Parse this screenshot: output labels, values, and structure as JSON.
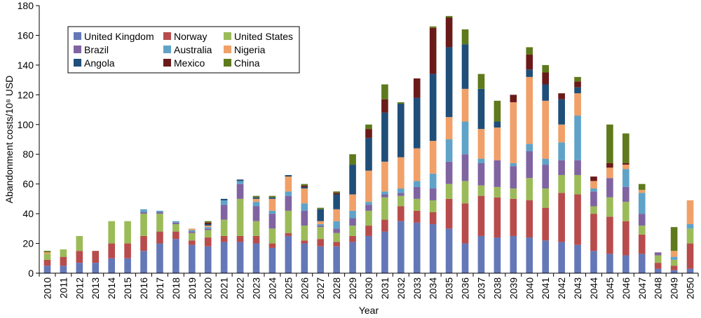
{
  "chart_data": {
    "type": "bar",
    "stacked": true,
    "title": "",
    "xlabel": "Year",
    "ylabel": "Abandonment costs/10⁸ USD",
    "ylim": [
      0,
      180
    ],
    "yticks": [
      0,
      20,
      40,
      60,
      80,
      100,
      120,
      140,
      160,
      180
    ],
    "grid": false,
    "legend_position": "top-left",
    "categories": [
      "2010",
      "2011",
      "2012",
      "2013",
      "2014",
      "2015",
      "2016",
      "2017",
      "2018",
      "2019",
      "2020",
      "2021",
      "2022",
      "2023",
      "2024",
      "2025",
      "2026",
      "2027",
      "2028",
      "2029",
      "2030",
      "2031",
      "2032",
      "2033",
      "2034",
      "2035",
      "2036",
      "2037",
      "2038",
      "2039",
      "2040",
      "2041",
      "2042",
      "2043",
      "2044",
      "2045",
      "2046",
      "2047",
      "2048",
      "2049",
      "2050"
    ],
    "series": [
      {
        "name": "United Kingdom",
        "color": "#6478B8",
        "values": [
          5,
          5,
          7,
          7,
          10,
          10,
          15,
          20,
          23,
          19,
          18,
          21,
          21,
          20,
          17,
          25,
          20,
          18,
          18,
          21,
          25,
          28,
          35,
          34,
          33,
          30,
          20,
          25,
          24,
          25,
          24,
          22,
          21,
          19,
          15,
          13,
          12,
          13,
          3,
          2,
          3
        ]
      },
      {
        "name": "Norway",
        "color": "#B84C4C",
        "values": [
          4,
          6,
          8,
          8,
          10,
          10,
          10,
          8,
          5,
          3,
          6,
          4,
          4,
          5,
          3,
          2,
          2,
          5,
          3,
          4,
          7,
          8,
          10,
          8,
          8,
          20,
          27,
          27,
          27,
          25,
          25,
          22,
          33,
          34,
          25,
          25,
          23,
          13,
          4,
          3,
          17
        ]
      },
      {
        "name": "United States",
        "color": "#9BBB59",
        "values": [
          4,
          5,
          10,
          0,
          15,
          15,
          15,
          12,
          5,
          5,
          5,
          11,
          25,
          10,
          10,
          15,
          10,
          8,
          6,
          7,
          10,
          15,
          7,
          8,
          8,
          10,
          15,
          7,
          7,
          7,
          15,
          13,
          12,
          13,
          5,
          13,
          13,
          6,
          5,
          4,
          10
        ]
      },
      {
        "name": "Brazil",
        "color": "#8064A2",
        "values": [
          0,
          0,
          0,
          0,
          0,
          0,
          1,
          1,
          1,
          1,
          1,
          10,
          10,
          10,
          10,
          10,
          10,
          1,
          3,
          5,
          4,
          2,
          2,
          8,
          8,
          15,
          18,
          15,
          18,
          15,
          18,
          16,
          10,
          10,
          10,
          13,
          10,
          8,
          2,
          0,
          0
        ]
      },
      {
        "name": "Australia",
        "color": "#5FA3C8",
        "values": [
          0,
          0,
          0,
          0,
          0,
          0,
          2,
          1,
          1,
          1,
          1,
          3,
          2,
          3,
          2,
          3,
          5,
          1,
          5,
          5,
          2,
          2,
          3,
          4,
          10,
          15,
          22,
          3,
          0,
          2,
          5,
          4,
          12,
          30,
          2,
          0,
          12,
          14,
          0,
          2,
          3
        ]
      },
      {
        "name": "Nigeria",
        "color": "#F0A068",
        "values": [
          1,
          0,
          0,
          0,
          0,
          0,
          0,
          0,
          0,
          1,
          1,
          0,
          0,
          2,
          8,
          10,
          10,
          2,
          8,
          11,
          21,
          20,
          21,
          22,
          22,
          15,
          22,
          20,
          22,
          41,
          45,
          39,
          12,
          15,
          5,
          7,
          3,
          2,
          0,
          4,
          16
        ]
      },
      {
        "name": "Angola",
        "color": "#1F4E79",
        "values": [
          0,
          0,
          0,
          0,
          0,
          0,
          0,
          0,
          0,
          0,
          1,
          1,
          1,
          1,
          1,
          1,
          1,
          8,
          10,
          20,
          22,
          33,
          36,
          34,
          45,
          47,
          30,
          27,
          4,
          0,
          5,
          11,
          17,
          4,
          0,
          0,
          0,
          0,
          0,
          0,
          0
        ]
      },
      {
        "name": "Mexico",
        "color": "#6B1A1A",
        "values": [
          0,
          0,
          0,
          0,
          0,
          0,
          0,
          0,
          0,
          0,
          1,
          0,
          0,
          0,
          0,
          0,
          1,
          0,
          1,
          0,
          6,
          9,
          0,
          13,
          31,
          20,
          0,
          0,
          0,
          5,
          10,
          8,
          4,
          4,
          3,
          3,
          1,
          0,
          0,
          0,
          0
        ]
      },
      {
        "name": "China",
        "color": "#5E7A1C",
        "values": [
          1,
          0,
          0,
          0,
          0,
          0,
          0,
          0,
          0,
          0,
          1,
          0,
          0,
          1,
          1,
          0,
          1,
          1,
          1,
          7,
          3,
          10,
          1,
          0,
          1,
          1,
          10,
          10,
          14,
          0,
          5,
          5,
          0,
          3,
          0,
          26,
          20,
          4,
          0,
          16,
          0
        ]
      }
    ]
  }
}
